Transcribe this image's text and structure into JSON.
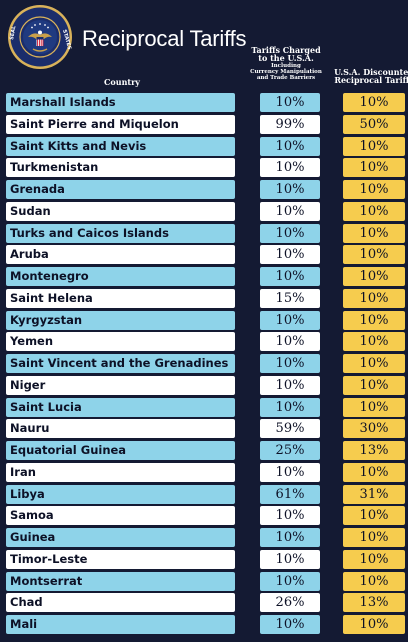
{
  "header": {
    "seal_text": "SEAL OF THE PRESIDENT OF THE UNITED STATES",
    "title": "Reciprocal Tariffs",
    "col_country": "Country",
    "col_charged_line1": "Tariffs Charged",
    "col_charged_line2": "to the U.S.A.",
    "col_charged_sub1": "Including",
    "col_charged_sub2": "Currency Manipulation",
    "col_charged_sub3": "and Trade Barriers",
    "col_disc_line1": "U.S.A. Discounted",
    "col_disc_line2": "Reciprocal Tariffs"
  },
  "rows": [
    {
      "country": "Marshall Islands",
      "charged": "10%",
      "discounted": "10%"
    },
    {
      "country": "Saint Pierre and Miquelon",
      "charged": "99%",
      "discounted": "50%"
    },
    {
      "country": "Saint Kitts and Nevis",
      "charged": "10%",
      "discounted": "10%"
    },
    {
      "country": "Turkmenistan",
      "charged": "10%",
      "discounted": "10%"
    },
    {
      "country": "Grenada",
      "charged": "10%",
      "discounted": "10%"
    },
    {
      "country": "Sudan",
      "charged": "10%",
      "discounted": "10%"
    },
    {
      "country": "Turks and Caicos Islands",
      "charged": "10%",
      "discounted": "10%"
    },
    {
      "country": "Aruba",
      "charged": "10%",
      "discounted": "10%"
    },
    {
      "country": "Montenegro",
      "charged": "10%",
      "discounted": "10%"
    },
    {
      "country": "Saint Helena",
      "charged": "15%",
      "discounted": "10%"
    },
    {
      "country": "Kyrgyzstan",
      "charged": "10%",
      "discounted": "10%"
    },
    {
      "country": "Yemen",
      "charged": "10%",
      "discounted": "10%"
    },
    {
      "country": "Saint Vincent and the Grenadines",
      "charged": "10%",
      "discounted": "10%"
    },
    {
      "country": "Niger",
      "charged": "10%",
      "discounted": "10%"
    },
    {
      "country": "Saint Lucia",
      "charged": "10%",
      "discounted": "10%"
    },
    {
      "country": "Nauru",
      "charged": "59%",
      "discounted": "30%"
    },
    {
      "country": "Equatorial Guinea",
      "charged": "25%",
      "discounted": "13%"
    },
    {
      "country": "Iran",
      "charged": "10%",
      "discounted": "10%"
    },
    {
      "country": "Libya",
      "charged": "61%",
      "discounted": "31%"
    },
    {
      "country": "Samoa",
      "charged": "10%",
      "discounted": "10%"
    },
    {
      "country": "Guinea",
      "charged": "10%",
      "discounted": "10%"
    },
    {
      "country": "Timor-Leste",
      "charged": "10%",
      "discounted": "10%"
    },
    {
      "country": "Montserrat",
      "charged": "10%",
      "discounted": "10%"
    },
    {
      "country": "Chad",
      "charged": "26%",
      "discounted": "13%"
    },
    {
      "country": "Mali",
      "charged": "10%",
      "discounted": "10%"
    }
  ],
  "colors": {
    "background": "#141a33",
    "row_blue": "#8ed3e9",
    "row_white": "#ffffff",
    "discount_gold": "#f6cc4e",
    "seal_gold": "#d9b25a"
  }
}
